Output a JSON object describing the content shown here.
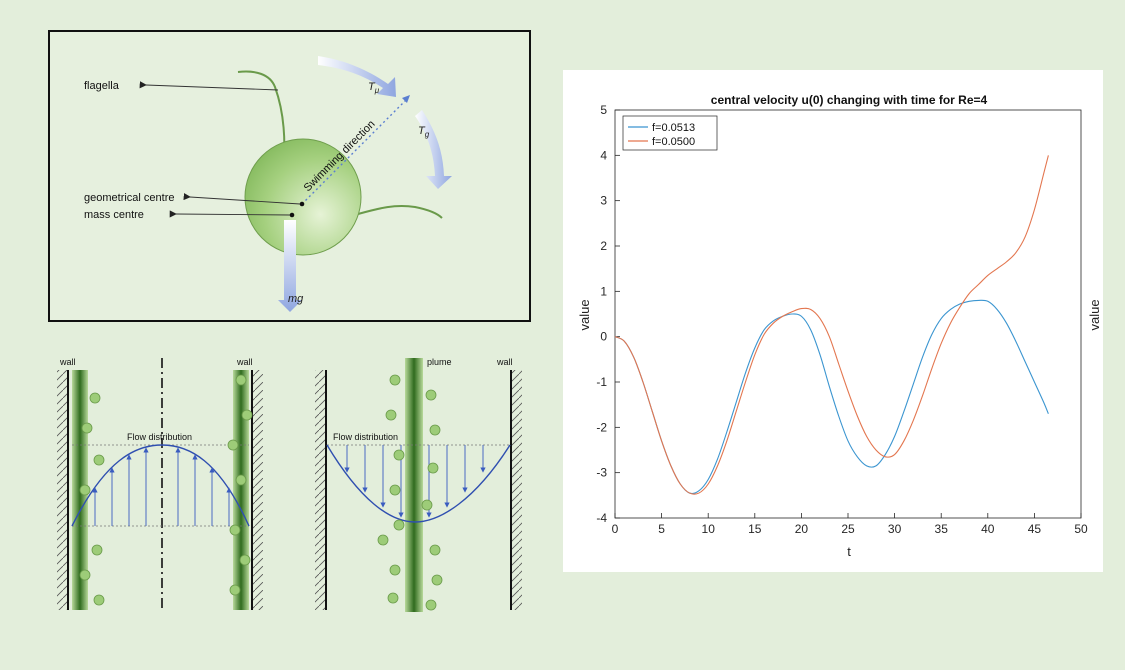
{
  "cell_diagram": {
    "labels": {
      "flagella": "flagella",
      "geometrical_centre": "geometrical centre",
      "mass_centre": "mass centre",
      "swimming_direction": "Swimming direction",
      "t_mu": "T",
      "t_mu_sub": "μ",
      "t_g": "T",
      "t_g_sub": "g",
      "mg": "mg"
    },
    "colors": {
      "cell": "#8fc46a",
      "arrow": "#9fb1e6",
      "flagella": "#6a9a4a"
    }
  },
  "flow_diagrams": {
    "left": {
      "wall_left": "wall",
      "wall_right": "wall",
      "flow_label": "Flow distribution"
    },
    "right": {
      "plume": "plume",
      "wall": "wall",
      "flow_label": "Flow distribution"
    }
  },
  "chart_data": {
    "type": "line",
    "title": "central velocity u(0) changing with time for Re=4",
    "xlabel": "t",
    "ylabel": "value",
    "ylabel_right": "value",
    "xlim": [
      0,
      50
    ],
    "ylim": [
      -4,
      5
    ],
    "xticks": [
      0,
      5,
      10,
      15,
      20,
      25,
      30,
      35,
      40,
      45,
      50
    ],
    "yticks": [
      -4,
      -3,
      -2,
      -1,
      0,
      1,
      2,
      3,
      4,
      5
    ],
    "legend_position": "top-left",
    "series": [
      {
        "name": "f=0.0513",
        "color": "#3b95d0",
        "x": [
          0,
          1,
          2,
          3,
          4,
          5,
          6,
          7,
          8,
          9,
          10,
          11,
          12,
          13,
          14,
          15,
          16,
          17,
          18,
          19,
          20,
          21,
          22,
          23,
          24,
          25,
          26,
          27,
          28,
          29,
          30,
          31,
          32,
          33,
          34,
          35,
          36,
          37,
          38,
          39,
          40,
          41,
          42,
          43,
          44,
          45,
          46,
          46.5
        ],
        "y": [
          0,
          -0.1,
          -0.45,
          -1.0,
          -1.65,
          -2.3,
          -2.85,
          -3.25,
          -3.45,
          -3.4,
          -3.15,
          -2.7,
          -2.1,
          -1.45,
          -0.8,
          -0.25,
          0.15,
          0.35,
          0.45,
          0.5,
          0.45,
          0.15,
          -0.4,
          -1.1,
          -1.75,
          -2.3,
          -2.65,
          -2.85,
          -2.85,
          -2.6,
          -2.2,
          -1.65,
          -1.05,
          -0.45,
          0.05,
          0.4,
          0.6,
          0.72,
          0.78,
          0.8,
          0.78,
          0.6,
          0.3,
          -0.1,
          -0.55,
          -1.0,
          -1.45,
          -1.7
        ]
      },
      {
        "name": "f=0.0500",
        "color": "#e3764f",
        "x": [
          0,
          1,
          2,
          3,
          4,
          5,
          6,
          7,
          8,
          9,
          10,
          11,
          12,
          13,
          14,
          15,
          16,
          17,
          18,
          19,
          20,
          21,
          22,
          23,
          24,
          25,
          26,
          27,
          28,
          29,
          30,
          31,
          32,
          33,
          34,
          35,
          36,
          37,
          38,
          39,
          40,
          41,
          42,
          43,
          44,
          45,
          46,
          46.5
        ],
        "y": [
          0,
          -0.1,
          -0.45,
          -1.0,
          -1.65,
          -2.3,
          -2.85,
          -3.25,
          -3.45,
          -3.45,
          -3.25,
          -2.85,
          -2.3,
          -1.65,
          -1.0,
          -0.4,
          0.05,
          0.3,
          0.45,
          0.55,
          0.62,
          0.6,
          0.4,
          0.0,
          -0.6,
          -1.2,
          -1.75,
          -2.2,
          -2.5,
          -2.65,
          -2.6,
          -2.3,
          -1.85,
          -1.3,
          -0.7,
          -0.15,
          0.3,
          0.65,
          0.95,
          1.15,
          1.35,
          1.5,
          1.65,
          1.85,
          2.2,
          2.8,
          3.6,
          4.0
        ]
      }
    ]
  }
}
